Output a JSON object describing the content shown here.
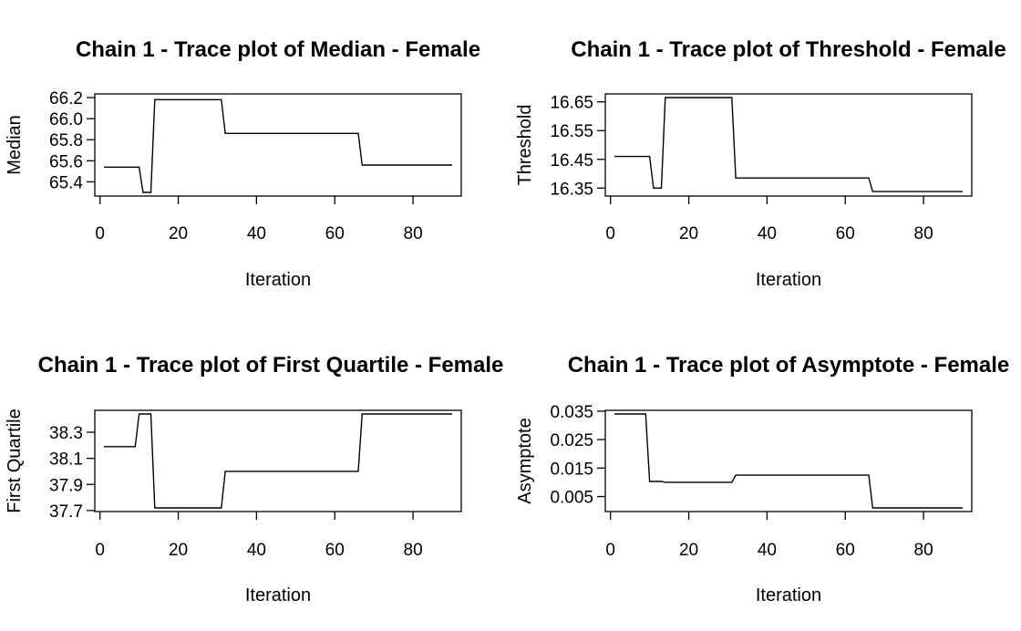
{
  "chart_data": [
    {
      "type": "line",
      "title": "Chain 1 - Trace plot of Median - Female",
      "xlabel": "Iteration",
      "ylabel": "Median",
      "xlim": [
        1,
        90
      ],
      "ylim": [
        65.3,
        66.2
      ],
      "xticks": [
        0,
        20,
        40,
        60,
        80
      ],
      "yticks": [
        "65.4",
        "65.6",
        "65.8",
        "66.0",
        "66.2"
      ],
      "grid": false,
      "series": [
        {
          "x": [
            1,
            10,
            11,
            13,
            14,
            31,
            32,
            66,
            67,
            90
          ],
          "y": [
            65.54,
            65.54,
            65.3,
            65.3,
            66.18,
            66.18,
            65.86,
            65.86,
            65.56,
            65.56
          ]
        }
      ]
    },
    {
      "type": "line",
      "title": "Chain 1 - Trace plot of Threshold - Female",
      "xlabel": "Iteration",
      "ylabel": "Threshold",
      "xlim": [
        1,
        90
      ],
      "ylim": [
        16.335,
        16.665
      ],
      "xticks": [
        0,
        20,
        40,
        60,
        80
      ],
      "yticks": [
        "16.35",
        "16.45",
        "16.55",
        "16.65"
      ],
      "grid": false,
      "series": [
        {
          "x": [
            1,
            10,
            11,
            13,
            14,
            31,
            32,
            66,
            67,
            90
          ],
          "y": [
            16.46,
            16.46,
            16.35,
            16.35,
            16.665,
            16.665,
            16.385,
            16.385,
            16.338,
            16.338
          ]
        }
      ]
    },
    {
      "type": "line",
      "title": "Chain 1 - Trace plot of First Quartile - Female",
      "xlabel": "Iteration",
      "ylabel": "First Quartile",
      "xlim": [
        1,
        90
      ],
      "ylim": [
        37.72,
        38.44
      ],
      "xticks": [
        0,
        20,
        40,
        60,
        80
      ],
      "yticks": [
        "37.7",
        "37.9",
        "38.1",
        "38.3"
      ],
      "grid": false,
      "series": [
        {
          "x": [
            1,
            9,
            10,
            13,
            14,
            31,
            32,
            66,
            67,
            90
          ],
          "y": [
            38.19,
            38.19,
            38.44,
            38.44,
            37.72,
            37.72,
            38.0,
            38.0,
            38.44,
            38.44
          ]
        }
      ]
    },
    {
      "type": "line",
      "title": "Chain 1 - Trace plot of Asymptote - Female",
      "xlabel": "Iteration",
      "ylabel": "Asymptote",
      "xlim": [
        1,
        90
      ],
      "ylim": [
        0.001,
        0.034
      ],
      "xticks": [
        0,
        20,
        40,
        60,
        80
      ],
      "yticks": [
        "0.005",
        "0.015",
        "0.025",
        "0.035"
      ],
      "grid": false,
      "series": [
        {
          "x": [
            1,
            9,
            10,
            13,
            14,
            31,
            32,
            66,
            67,
            90
          ],
          "y": [
            0.034,
            0.034,
            0.0103,
            0.0103,
            0.01,
            0.01,
            0.0125,
            0.0125,
            0.001,
            0.001
          ]
        }
      ]
    }
  ]
}
